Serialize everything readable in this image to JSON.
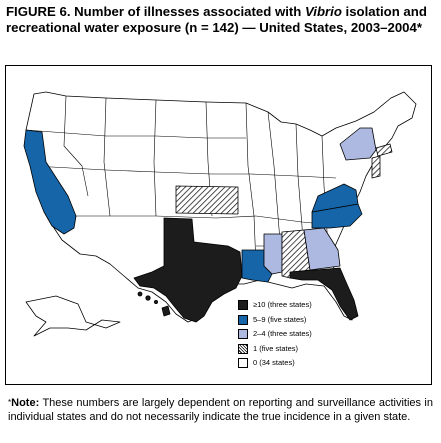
{
  "title": {
    "prefix": "FIGURE 6. Number of illnesses associated with ",
    "organism": "Vibrio",
    "suffix": " isolation and recreational water exposure (n = 142) — United States, 2003–2004*"
  },
  "legend": [
    {
      "label": "≥10 (three states)",
      "color": "#1c1c1c"
    },
    {
      "label": "5–9 (five states)",
      "color": "#1565a8"
    },
    {
      "label": "2–4 (three states)",
      "color": "#aeb9e1"
    },
    {
      "label": "1 (five states)",
      "color": "hatched"
    },
    {
      "label": "0 (34 states)",
      "color": "#ffffff"
    }
  ],
  "note": {
    "marker": "*",
    "heading": "Note:",
    "text": " These numbers are largely dependent on reporting and surveillance activities in individual states and do not necessarily indicate the true incidence in a given state."
  }
}
